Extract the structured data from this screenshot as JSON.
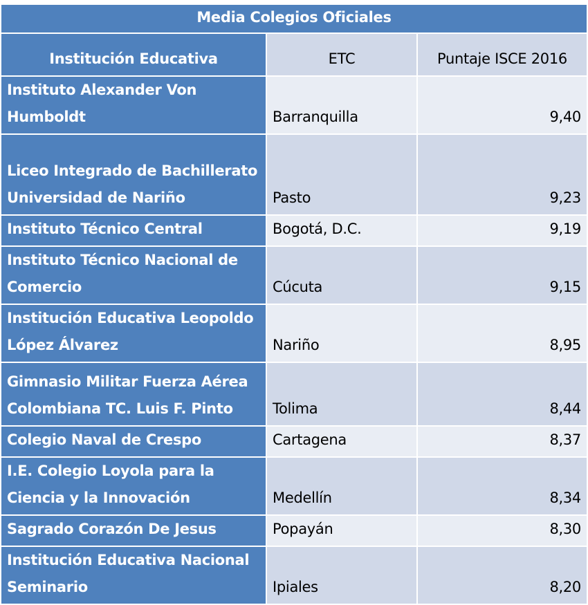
{
  "title": "Media Colegios Oficiales",
  "headers": [
    "Institución Educativa",
    "ETC",
    "Puntaje ISCE 2016"
  ],
  "rows": [
    {
      "name": "Instituto Alexander Von Humboldt",
      "etc": "Barranquilla",
      "score": "9,40"
    },
    {
      "name": "Liceo Integrado de Bachillerato Universidad de Nariño",
      "etc": "Pasto",
      "score": "9,23"
    },
    {
      "name": "Instituto Técnico Central",
      "etc": "Bogotá, D.C.",
      "score": "9,19"
    },
    {
      "name": "Instituto Técnico Nacional de Comercio",
      "etc": "Cúcuta",
      "score": "9,15"
    },
    {
      "name": "Institución Educativa Leopoldo López Álvarez",
      "etc": "Nariño",
      "score": "8,95"
    },
    {
      "name": "Gimnasio Militar Fuerza Aérea Colombiana  TC. Luis F. Pinto",
      "etc": "Tolima",
      "score": "8,44"
    },
    {
      "name": "Colegio Naval de Crespo",
      "etc": "Cartagena",
      "score": "8,37"
    },
    {
      "name": "I.E. Colegio Loyola para la Ciencia y la Innovación",
      "etc": "Medellín",
      "score": "8,34"
    },
    {
      "name": "Sagrado Corazón De Jesus",
      "etc": "Popayán",
      "score": "8,30"
    },
    {
      "name": "Institución Educativa Nacional Seminario",
      "etc": "Ipiales",
      "score": "8,20"
    }
  ],
  "colors": {
    "accent": "#4F81BD",
    "cell_light": "#E9EDF4",
    "cell_dark": "#D0D8E8"
  }
}
